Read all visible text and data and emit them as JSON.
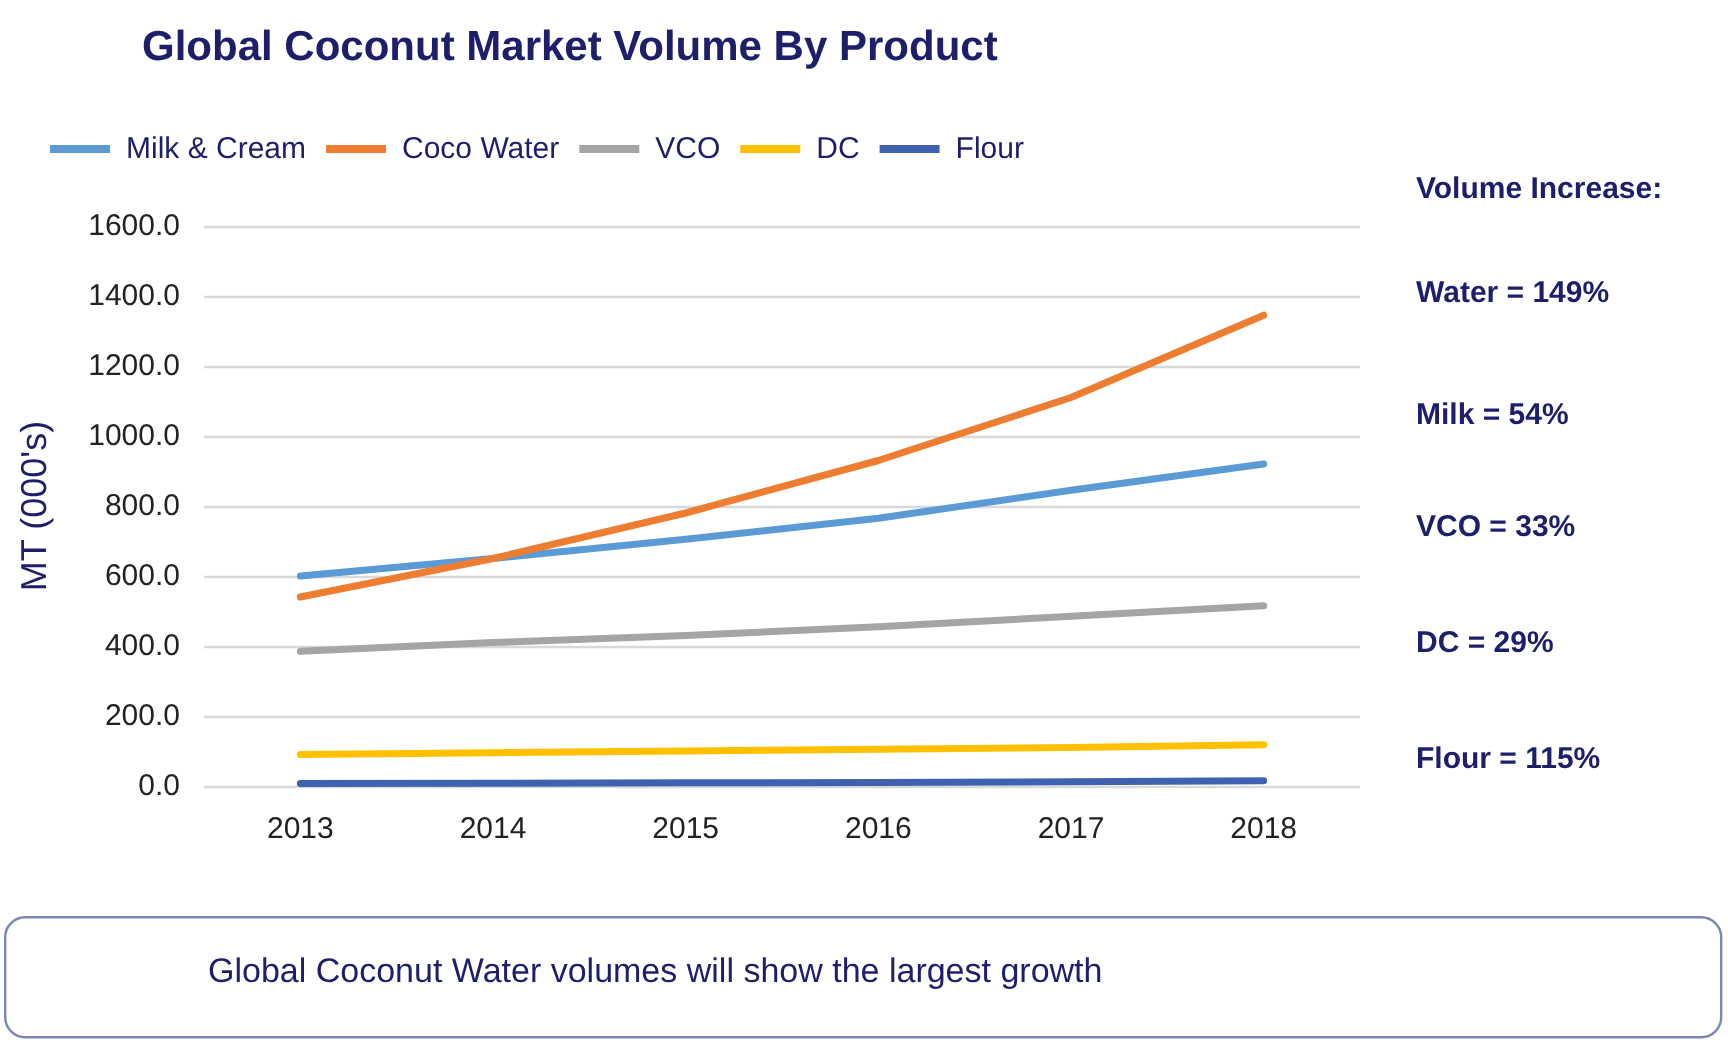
{
  "chart_data": {
    "type": "line",
    "title": "Global Coconut Market Volume By Product",
    "ylabel": "MT (000's)",
    "categories": [
      "2013",
      "2014",
      "2015",
      "2016",
      "2017",
      "2018"
    ],
    "series": [
      {
        "name": "Milk & Cream",
        "color": "#5b9bd5",
        "values": [
          600,
          650,
          705,
          765,
          845,
          920
        ]
      },
      {
        "name": "Coco Water",
        "color": "#ed7d31",
        "values": [
          540,
          650,
          780,
          930,
          1110,
          1345
        ]
      },
      {
        "name": "VCO",
        "color": "#a5a5a5",
        "values": [
          385,
          410,
          430,
          455,
          485,
          515
        ]
      },
      {
        "name": "DC",
        "color": "#ffc000",
        "values": [
          90,
          95,
          100,
          105,
          110,
          118
        ]
      },
      {
        "name": "Flour",
        "color": "#3f62b0",
        "values": [
          7,
          8,
          9,
          10,
          12,
          15
        ]
      }
    ],
    "ylim": [
      0,
      1600
    ],
    "yticks": [
      {
        "value": 0,
        "label": "0.0"
      },
      {
        "value": 200,
        "label": "200.0"
      },
      {
        "value": 400,
        "label": "400.0"
      },
      {
        "value": 600,
        "label": "600.0"
      },
      {
        "value": 800,
        "label": "800.0"
      },
      {
        "value": 1000,
        "label": "1000.0"
      },
      {
        "value": 1200,
        "label": "1200.0"
      },
      {
        "value": 1400,
        "label": "1400.0"
      },
      {
        "value": 1600,
        "label": "1600.0"
      }
    ],
    "grid": "y",
    "legend": "top",
    "marker": "none",
    "line_style": "solid",
    "annotations": [
      "Volume Increase:",
      "Water = 149%",
      "Milk = 54%",
      "VCO = 33%",
      "DC = 29%",
      "Flour = 115%",
      "Global Coconut Water volumes will show the largest growth"
    ]
  }
}
